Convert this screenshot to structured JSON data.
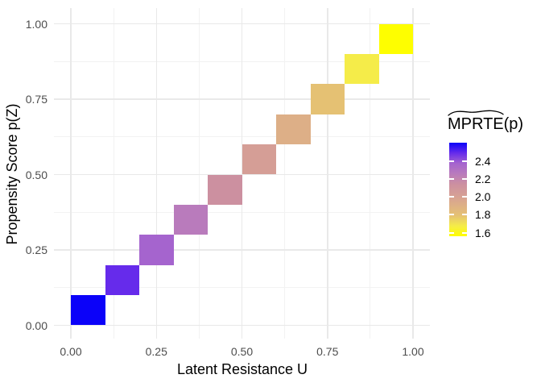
{
  "chart_data": {
    "type": "heatmap",
    "title": "",
    "xlabel": "Latent Resistance U",
    "ylabel": "Propensity Score p(Z)",
    "xlim": [
      -0.05,
      1.05
    ],
    "ylim": [
      -0.05,
      1.05
    ],
    "background": "#FFFFFF",
    "grid": {
      "show": true,
      "major_color": "#E9E9E9",
      "minor_color": "#F2F2F2"
    },
    "axis_text_color": "#4D4D4D",
    "x_ticks": {
      "values": [
        0,
        0.25,
        0.5,
        0.75,
        1
      ],
      "labels": [
        "0.00",
        "0.25",
        "0.50",
        "0.75",
        "1.00"
      ]
    },
    "y_ticks": {
      "values": [
        0,
        0.25,
        0.5,
        0.75,
        1
      ],
      "labels": [
        "0.00",
        "0.25",
        "0.50",
        "0.75",
        "1.00"
      ]
    },
    "x_minor_ticks": [
      0.125,
      0.375,
      0.625,
      0.875
    ],
    "y_minor_ticks": [
      0.125,
      0.375,
      0.625,
      0.875
    ],
    "legend": {
      "title": "MPRTE(p)",
      "title_main": "MPRTE",
      "title_suffix": "(p)",
      "title_decoration": "wide tilde over MPRTE",
      "position": "right",
      "bar_value_top": 2.61,
      "bar_value_bottom": 1.56,
      "tick_values": [
        2.4,
        2.2,
        2.0,
        1.8,
        1.6
      ],
      "tick_labels": [
        "2.4",
        "2.2",
        "2.0",
        "1.8",
        "1.6"
      ],
      "gradient_top_to_bottom": [
        "#0B02F9",
        "#662BEB",
        "#A564CE",
        "#B97BBC",
        "#CC90A0",
        "#D59E96",
        "#DDAF87",
        "#E5C173",
        "#F5EC49",
        "#FEFE00"
      ]
    },
    "tiles": [
      {
        "u": [
          0.0,
          0.1
        ],
        "p": [
          0.0,
          0.1
        ],
        "value": 2.61,
        "color": "#0B02F9"
      },
      {
        "u": [
          0.1,
          0.2
        ],
        "p": [
          0.1,
          0.2
        ],
        "value": 2.49,
        "color": "#662BEB"
      },
      {
        "u": [
          0.2,
          0.3
        ],
        "p": [
          0.2,
          0.3
        ],
        "value": 2.38,
        "color": "#A564CE"
      },
      {
        "u": [
          0.3,
          0.4
        ],
        "p": [
          0.3,
          0.4
        ],
        "value": 2.26,
        "color": "#B97BBC"
      },
      {
        "u": [
          0.4,
          0.5
        ],
        "p": [
          0.4,
          0.5
        ],
        "value": 2.14,
        "color": "#CC90A0"
      },
      {
        "u": [
          0.5,
          0.6
        ],
        "p": [
          0.5,
          0.6
        ],
        "value": 2.03,
        "color": "#D59E96"
      },
      {
        "u": [
          0.6,
          0.7
        ],
        "p": [
          0.6,
          0.7
        ],
        "value": 1.91,
        "color": "#DDAF87"
      },
      {
        "u": [
          0.7,
          0.8
        ],
        "p": [
          0.7,
          0.8
        ],
        "value": 1.79,
        "color": "#E5C173"
      },
      {
        "u": [
          0.8,
          0.9
        ],
        "p": [
          0.8,
          0.9
        ],
        "value": 1.68,
        "color": "#F5EC49"
      },
      {
        "u": [
          0.9,
          1.0
        ],
        "p": [
          0.9,
          1.0
        ],
        "value": 1.56,
        "color": "#FEFE00"
      }
    ]
  }
}
